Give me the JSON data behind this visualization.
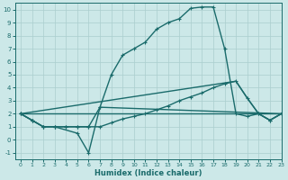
{
  "xlabel": "Humidex (Indice chaleur)",
  "xlim": [
    -0.5,
    23
  ],
  "ylim": [
    -1.5,
    10.5
  ],
  "xticks": [
    0,
    1,
    2,
    3,
    4,
    5,
    6,
    7,
    8,
    9,
    10,
    11,
    12,
    13,
    14,
    15,
    16,
    17,
    18,
    19,
    20,
    21,
    22,
    23
  ],
  "yticks": [
    -1,
    0,
    1,
    2,
    3,
    4,
    5,
    6,
    7,
    8,
    9,
    10
  ],
  "background_color": "#cce8e8",
  "grid_color": "#aacece",
  "line_color": "#1a6b6b",
  "lines": [
    {
      "x": [
        0,
        1,
        2,
        3,
        4,
        5,
        6,
        7,
        8,
        9,
        10,
        11,
        12,
        13,
        14,
        15,
        16,
        17,
        18,
        19,
        20,
        21,
        22,
        23
      ],
      "y": [
        2,
        1.5,
        1,
        1,
        1,
        1,
        1,
        2.5,
        5,
        6.5,
        7,
        7.5,
        8.5,
        9,
        9.3,
        10.1,
        10.2,
        10.2,
        7,
        2,
        1.8,
        2,
        1.5,
        2
      ],
      "has_markers": true
    },
    {
      "x": [
        0,
        1,
        2,
        3,
        4,
        5,
        6,
        7,
        8,
        9,
        10,
        11,
        12,
        13,
        14,
        15,
        16,
        17,
        18,
        19,
        20,
        21,
        22,
        23
      ],
      "y": [
        2,
        1.5,
        1,
        1,
        1,
        1,
        1,
        1,
        1.3,
        1.6,
        1.8,
        2.0,
        2.3,
        2.6,
        3.0,
        3.3,
        3.6,
        4.0,
        4.3,
        4.5,
        3.2,
        2,
        1.5,
        2
      ],
      "has_markers": true
    },
    {
      "x": [
        0,
        22,
        23
      ],
      "y": [
        2,
        2,
        2
      ],
      "has_markers": false
    },
    {
      "x": [
        0,
        1,
        2,
        3,
        5,
        6,
        7,
        23
      ],
      "y": [
        2,
        1.5,
        1,
        1,
        0.5,
        -1,
        2.5,
        2
      ],
      "has_markers": true
    },
    {
      "x": [
        0,
        19,
        20,
        21,
        22,
        23
      ],
      "y": [
        2,
        4.5,
        3.2,
        2,
        1.5,
        2
      ],
      "has_markers": false
    }
  ],
  "markersize": 2.5,
  "linewidth": 1.0
}
